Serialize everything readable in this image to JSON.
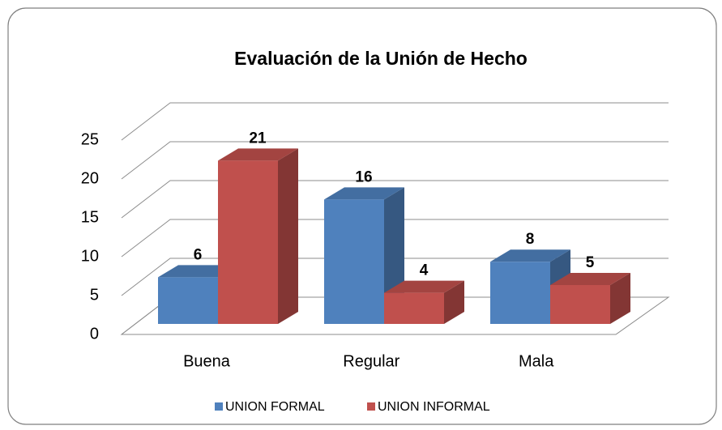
{
  "chart_data": {
    "type": "bar3d",
    "title": "Evaluación  de la Unión de Hecho",
    "categories": [
      "Buena",
      "Regular",
      "Mala"
    ],
    "series": [
      {
        "name": "UNION FORMAL",
        "color": "#4f81bd",
        "values": [
          6,
          16,
          8
        ]
      },
      {
        "name": "UNION INFORMAL",
        "color": "#c0504d",
        "values": [
          21,
          4,
          5
        ]
      }
    ],
    "ylim": [
      0,
      25
    ],
    "yticks": [
      0,
      5,
      10,
      15,
      20,
      25
    ],
    "grid": true,
    "legend": "bottom"
  }
}
